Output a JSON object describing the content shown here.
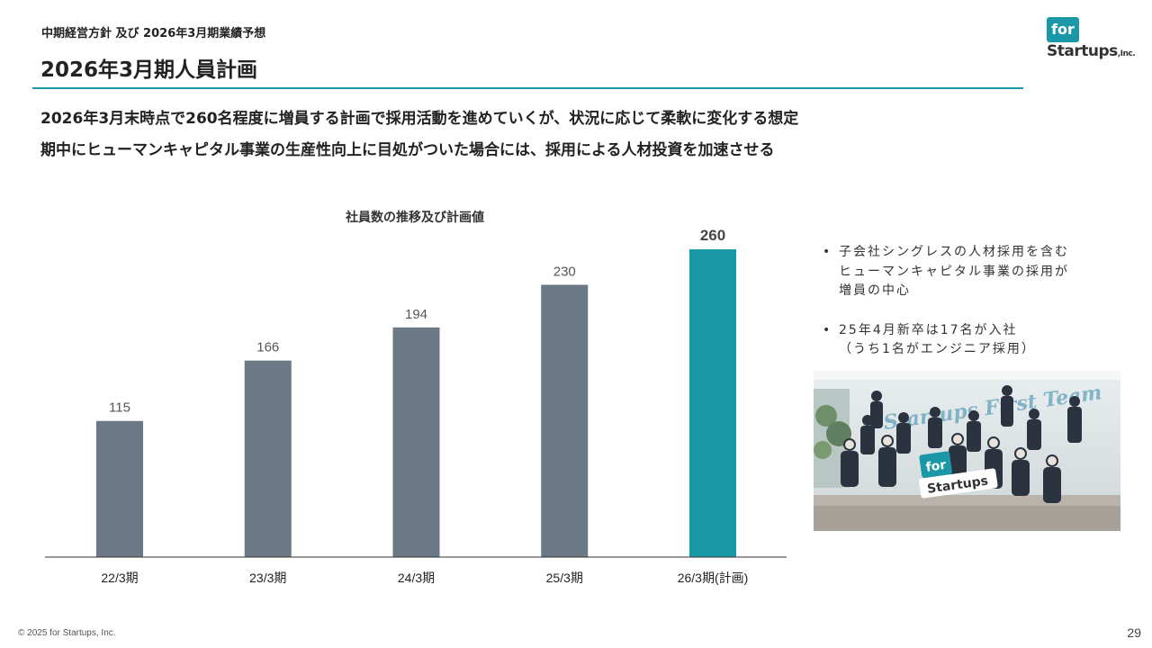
{
  "header": {
    "breadcrumb": "中期経営方針 及び 2026年3月期業績予想",
    "title": "2026年3月期人員計画"
  },
  "logo": {
    "for": "for",
    "startups": "Startups",
    "inc": ",Inc."
  },
  "lead": {
    "line1": "2026年3月末時点で260名程度に増員する計画で採用活動を進めていくが、状況に応じて柔軟に変化する想定",
    "line2": "期中にヒューマンキャピタル事業の生産性向上に目処がついた場合には、採用による人材投資を加速させる"
  },
  "chart_data": {
    "type": "bar",
    "title": "社員数の推移及び計画値",
    "categories": [
      "22/3期",
      "23/3期",
      "24/3期",
      "25/3期",
      "26/3期(計画)"
    ],
    "values": [
      115,
      166,
      194,
      230,
      260
    ],
    "value_labels": [
      "115",
      "166",
      "194",
      "230",
      "260"
    ],
    "highlight_index": 4,
    "ylim": [
      0,
      260
    ],
    "grid": false,
    "colors": {
      "bar": "#6b7885",
      "highlight": "#1a98a8",
      "axis": "#333333"
    }
  },
  "bullets": [
    {
      "line1": "子会社シングレスの人材採用を含む",
      "line2": "ヒューマンキャピタル事業の採用が",
      "line3": "増員の中心"
    },
    {
      "line1": "25年4月新卒は17名が入社",
      "line2": "（うち1名がエンジニア採用）",
      "line3": ""
    }
  ],
  "photo": {
    "sign_text": "Startups First Team",
    "board_for": "for",
    "board_startups": "Startups"
  },
  "footer": {
    "copyright": "© 2025 for Startups, Inc.",
    "page": "29"
  },
  "colors": {
    "accent": "#1a98a8",
    "text": "#222222"
  }
}
